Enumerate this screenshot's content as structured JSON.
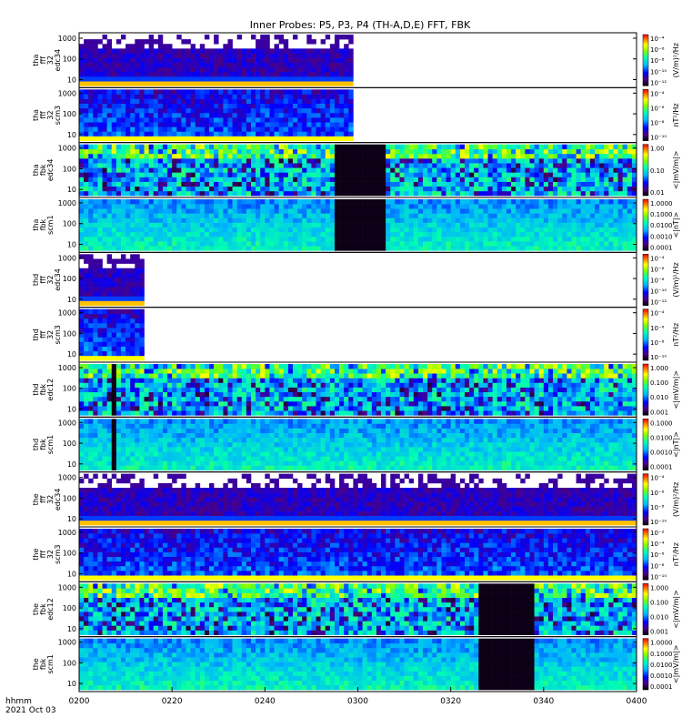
{
  "chart_data": {
    "type": "heatmap",
    "title": "Inner Probes: P5, P3, P4 (TH-A,D,E) FFT, FBK",
    "x_ticks": [
      "0200",
      "0220",
      "0240",
      "0300",
      "0320",
      "0340",
      "0400"
    ],
    "x_axis_label": [
      "hhmm",
      "2021 Oct 03"
    ],
    "y_ticks": [
      "1000",
      "100",
      "10"
    ],
    "y_range_hz": [
      5,
      1500
    ],
    "y_scale": "log",
    "time_range": [
      "0200",
      "0400"
    ],
    "panels": [
      {
        "probe": "tha",
        "label": [
          "tha",
          "fff",
          "32",
          "edc34"
        ],
        "units": "(V/m)²/Hz",
        "kind": "fff_e",
        "cbar_ticks": [
          "10⁻⁴",
          "10⁻⁶",
          "10⁻⁸",
          "10⁻¹⁰",
          "10⁻¹²"
        ],
        "data_end_min": 59
      },
      {
        "probe": "tha",
        "label": [
          "tha",
          "fff",
          "32",
          "scm3"
        ],
        "units": "nT²/Hz",
        "kind": "fff_b",
        "cbar_ticks": [
          "10⁻⁴",
          "10⁻⁶",
          "10⁻⁸",
          "10⁻¹⁰"
        ],
        "data_end_min": 59
      },
      {
        "probe": "tha",
        "label": [
          "tha",
          "fbk",
          "edc34"
        ],
        "units": "<|mV/m|>",
        "kind": "fbk_e",
        "cbar_ticks": [
          "1.00",
          "0.10",
          "0.01"
        ],
        "gap_min": [
          55,
          66
        ]
      },
      {
        "probe": "tha",
        "label": [
          "tha",
          "fbk",
          "scm1"
        ],
        "units": "<|nT|>",
        "kind": "fbk_b",
        "cbar_ticks": [
          "1.0000",
          "0.1000",
          "0.0100",
          "0.0010",
          "0.0001"
        ],
        "gap_min": [
          55,
          66
        ]
      },
      {
        "probe": "thd",
        "label": [
          "thd",
          "fff",
          "32",
          "edc34"
        ],
        "units": "(V/m)²/Hz",
        "kind": "fff_e",
        "cbar_ticks": [
          "10⁻⁴",
          "10⁻⁶",
          "10⁻⁸",
          "10⁻¹⁰",
          "10⁻¹²"
        ],
        "data_end_min": 14
      },
      {
        "probe": "thd",
        "label": [
          "thd",
          "fff",
          "32",
          "scm3"
        ],
        "units": "nT²/Hz",
        "kind": "fff_b",
        "cbar_ticks": [
          "10⁻⁴",
          "10⁻⁶",
          "10⁻⁸",
          "10⁻¹⁰"
        ],
        "data_end_min": 14
      },
      {
        "probe": "thd",
        "label": [
          "thd",
          "fbk",
          "edc12"
        ],
        "units": "<|mV/m|>",
        "kind": "fbk_e",
        "cbar_ticks": [
          "1.000",
          "0.100",
          "0.010",
          "0.001"
        ],
        "gap_min": [
          7,
          8
        ]
      },
      {
        "probe": "thd",
        "label": [
          "thd",
          "fbk",
          "scm1"
        ],
        "units": "<|nT|>",
        "kind": "fbk_b",
        "cbar_ticks": [
          "0.1000",
          "0.0100",
          "0.0010",
          "0.0001"
        ],
        "gap_min": [
          7,
          8
        ]
      },
      {
        "probe": "the",
        "label": [
          "the",
          "fff",
          "32",
          "edc34"
        ],
        "units": "(V/m)²/Hz",
        "kind": "fff_e",
        "cbar_ticks": [
          "10⁻⁴",
          "10⁻⁶",
          "10⁻⁸",
          "10⁻¹⁰"
        ],
        "data_end_min": 120
      },
      {
        "probe": "the",
        "label": [
          "the",
          "fff",
          "32",
          "scm3"
        ],
        "units": "nT²/Hz",
        "kind": "fff_b",
        "cbar_ticks": [
          "10⁻²",
          "10⁻⁴",
          "10⁻⁶",
          "10⁻⁸",
          "10⁻¹⁰"
        ],
        "data_end_min": 120
      },
      {
        "probe": "the",
        "label": [
          "the",
          "fbk",
          "edc12"
        ],
        "units": "<|mV/m|>",
        "kind": "fbk_e",
        "cbar_ticks": [
          "1.000",
          "0.100",
          "0.010",
          "0.001"
        ],
        "gap_min": [
          86,
          98
        ]
      },
      {
        "probe": "the",
        "label": [
          "the",
          "fbk",
          "scm1"
        ],
        "units": "<|mV/m|>",
        "kind": "fbk_b",
        "cbar_ticks": [
          "1.0000",
          "0.1000",
          "0.0100",
          "0.0010",
          "0.0001"
        ],
        "gap_min": [
          86,
          98
        ]
      }
    ]
  }
}
